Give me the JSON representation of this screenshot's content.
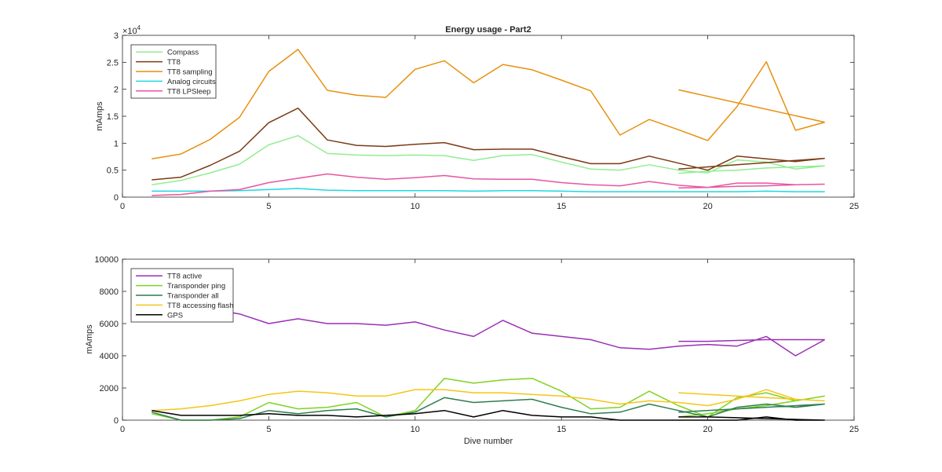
{
  "chart_data": [
    {
      "type": "line",
      "title": "Energy usage - Part2",
      "ylabel": "mAmps",
      "xlabel": "",
      "exponent_label": "×10",
      "exponent_power": "4",
      "xlim": [
        0,
        25
      ],
      "ylim": [
        0,
        30000
      ],
      "xticks": [
        "0",
        "5",
        "10",
        "15",
        "20",
        "25"
      ],
      "yticks": [
        "0",
        "0.5",
        "1",
        "1.5",
        "2",
        "2.5",
        "3"
      ],
      "xtick_values": [
        0,
        5,
        10,
        15,
        20,
        25
      ],
      "ytick_values": [
        0,
        5000,
        10000,
        15000,
        20000,
        25000,
        30000
      ],
      "grid": false,
      "legend_position": "top-left",
      "series": [
        {
          "name": "Compass",
          "color": "#90ee90",
          "x": [
            1,
            2,
            3,
            4,
            5,
            6,
            7,
            8,
            9,
            10,
            11,
            12,
            13,
            14,
            15,
            16,
            17,
            18,
            19,
            20,
            21,
            22,
            23,
            24,
            null,
            19,
            20,
            21,
            22,
            23,
            24
          ],
          "y": [
            2300,
            3100,
            4500,
            6100,
            9700,
            11400,
            8100,
            7800,
            7700,
            7800,
            7700,
            6800,
            7700,
            7900,
            6500,
            5200,
            5000,
            6000,
            5000,
            4500,
            6900,
            6500,
            5200,
            5800,
            null,
            4400,
            4800,
            5000,
            5400,
            5600,
            5800
          ]
        },
        {
          "name": "TT8",
          "color": "#7b3a13",
          "x": [
            1,
            2,
            3,
            4,
            5,
            6,
            7,
            8,
            9,
            10,
            11,
            12,
            13,
            14,
            15,
            16,
            17,
            18,
            19,
            20,
            21,
            22,
            23,
            24,
            null,
            19,
            20,
            21,
            22,
            23,
            24
          ],
          "y": [
            3200,
            3700,
            5900,
            8500,
            13800,
            16500,
            10600,
            9600,
            9400,
            9800,
            10100,
            8800,
            8900,
            8900,
            7500,
            6200,
            6200,
            7600,
            6300,
            5000,
            7600,
            7100,
            6600,
            7200,
            null,
            5200,
            5600,
            6000,
            6400,
            6800,
            7200
          ]
        },
        {
          "name": "TT8 sampling",
          "color": "#e8900f",
          "x": [
            1,
            2,
            3,
            4,
            5,
            6,
            7,
            8,
            9,
            10,
            11,
            12,
            13,
            14,
            15,
            16,
            17,
            18,
            19,
            20,
            21,
            22,
            23,
            24,
            null,
            19,
            24
          ],
          "y": [
            7100,
            8000,
            10700,
            14800,
            23300,
            27400,
            19800,
            18900,
            18500,
            23700,
            25300,
            21200,
            24600,
            23600,
            21700,
            19700,
            11500,
            14400,
            12500,
            10500,
            16800,
            25100,
            12400,
            13900,
            null,
            19900,
            13900
          ]
        },
        {
          "name": "Analog circuits",
          "color": "#1fd8e0",
          "x": [
            1,
            2,
            3,
            4,
            5,
            6,
            7,
            8,
            9,
            10,
            11,
            12,
            13,
            14,
            15,
            16,
            17,
            18,
            19,
            20,
            21,
            22,
            23,
            24
          ],
          "y": [
            1100,
            1100,
            1100,
            1200,
            1400,
            1600,
            1300,
            1200,
            1200,
            1200,
            1200,
            1100,
            1200,
            1200,
            1100,
            1000,
            1000,
            1000,
            1000,
            1000,
            1000,
            1100,
            1000,
            1000
          ]
        },
        {
          "name": "TT8 LPSleep",
          "color": "#e8559f",
          "x": [
            1,
            2,
            3,
            4,
            5,
            6,
            7,
            8,
            9,
            10,
            11,
            12,
            13,
            14,
            15,
            16,
            17,
            18,
            19,
            20,
            21,
            22,
            23,
            24,
            null,
            19,
            20,
            21,
            22,
            23,
            24
          ],
          "y": [
            300,
            500,
            1100,
            1400,
            2700,
            3500,
            4300,
            3700,
            3300,
            3600,
            4000,
            3400,
            3300,
            3300,
            2700,
            2300,
            2100,
            2900,
            2200,
            1800,
            2600,
            2600,
            2300,
            2400,
            null,
            1700,
            1800,
            2000,
            2100,
            2300,
            2400
          ]
        }
      ]
    },
    {
      "type": "line",
      "title": "",
      "ylabel": "mAmps",
      "xlabel": "Dive number",
      "xlim": [
        0,
        25
      ],
      "ylim": [
        0,
        10000
      ],
      "xticks": [
        "0",
        "5",
        "10",
        "15",
        "20",
        "25"
      ],
      "yticks": [
        "0",
        "2000",
        "4000",
        "6000",
        "8000",
        "10000"
      ],
      "xtick_values": [
        0,
        5,
        10,
        15,
        20,
        25
      ],
      "ytick_values": [
        0,
        2000,
        4000,
        6000,
        8000,
        10000
      ],
      "grid": false,
      "legend_position": "top-left",
      "series": [
        {
          "name": "TT8 active",
          "color": "#9a2fb5",
          "x": [
            1,
            2,
            3,
            4,
            5,
            6,
            7,
            8,
            9,
            10,
            11,
            12,
            13,
            14,
            15,
            16,
            17,
            18,
            19,
            20,
            21,
            22,
            23,
            24,
            null,
            19,
            20,
            21,
            22,
            23,
            24
          ],
          "y": [
            7300,
            7000,
            6900,
            6600,
            6000,
            6300,
            6000,
            6000,
            5900,
            6100,
            5600,
            5200,
            6200,
            5400,
            5200,
            5000,
            4500,
            4400,
            4600,
            4700,
            4600,
            5200,
            4000,
            5000,
            null,
            4900,
            4900,
            4950,
            5000,
            5000,
            5000
          ]
        },
        {
          "name": "Transponder ping",
          "color": "#7ed321",
          "x": [
            1,
            2,
            3,
            4,
            5,
            6,
            7,
            8,
            9,
            10,
            11,
            12,
            13,
            14,
            15,
            16,
            17,
            18,
            19,
            20,
            21,
            22,
            23,
            24,
            null,
            19,
            20,
            21,
            22,
            23,
            24
          ],
          "y": [
            400,
            0,
            0,
            200,
            1100,
            700,
            800,
            1100,
            200,
            600,
            2600,
            2300,
            2500,
            2600,
            1800,
            700,
            800,
            1800,
            900,
            200,
            1400,
            1700,
            1200,
            1500,
            null,
            200,
            400,
            700,
            900,
            1200,
            1500
          ]
        },
        {
          "name": "Transponder all",
          "color": "#2e7d4f",
          "x": [
            1,
            2,
            3,
            4,
            5,
            6,
            7,
            8,
            9,
            10,
            11,
            12,
            13,
            14,
            15,
            16,
            17,
            18,
            19,
            20,
            21,
            22,
            23,
            24,
            null,
            19,
            24
          ],
          "y": [
            500,
            0,
            0,
            100,
            600,
            400,
            600,
            700,
            200,
            500,
            1400,
            1100,
            1200,
            1300,
            800,
            400,
            500,
            1000,
            600,
            200,
            800,
            1000,
            800,
            1000,
            null,
            500,
            1000
          ]
        },
        {
          "name": "TT8 accessing flash",
          "color": "#f5c518",
          "x": [
            1,
            2,
            3,
            4,
            5,
            6,
            7,
            8,
            9,
            10,
            11,
            12,
            13,
            14,
            15,
            16,
            17,
            18,
            19,
            20,
            21,
            22,
            23,
            24,
            null,
            19,
            20,
            21,
            22,
            23,
            24
          ],
          "y": [
            600,
            700,
            900,
            1200,
            1600,
            1800,
            1700,
            1500,
            1500,
            1900,
            1900,
            1700,
            1700,
            1600,
            1500,
            1300,
            1000,
            1200,
            1100,
            900,
            1300,
            1900,
            1300,
            1200,
            null,
            1700,
            1600,
            1500,
            1400,
            1300,
            1200
          ]
        },
        {
          "name": "GPS",
          "color": "#000000",
          "x": [
            1,
            2,
            3,
            4,
            5,
            6,
            7,
            8,
            9,
            10,
            11,
            12,
            13,
            14,
            15,
            16,
            17,
            18,
            19,
            20,
            21,
            22,
            23,
            24,
            null,
            19,
            20,
            21,
            22,
            23,
            24
          ],
          "y": [
            600,
            300,
            300,
            300,
            400,
            300,
            300,
            200,
            300,
            400,
            600,
            200,
            600,
            300,
            200,
            200,
            0,
            0,
            0,
            0,
            0,
            200,
            0,
            0,
            null,
            200,
            200,
            150,
            100,
            50,
            0
          ]
        }
      ]
    }
  ]
}
